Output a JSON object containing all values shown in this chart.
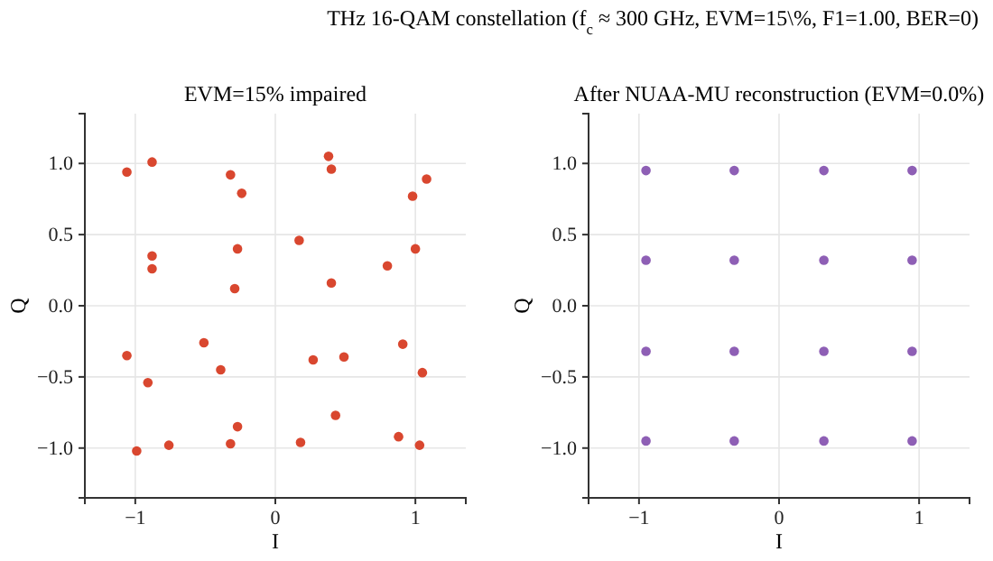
{
  "chart_data": [
    {
      "type": "scatter",
      "title": "EVM=15% impaired",
      "xlabel": "I",
      "ylabel": "Q",
      "annotations": [
        "THz 16-QAM constellation (f$_{c}$ ≈ 300 GHz, EVM=15\\%, F1=1.00, BER=0)"
      ],
      "xlim": [
        -1.36,
        1.36
      ],
      "ylim": [
        -1.35,
        1.35
      ],
      "xticks": [
        -1,
        0,
        1
      ],
      "yticks": [
        {
          "value": -1,
          "label": "−1.0"
        },
        {
          "value": -0.5,
          "label": "−0.5"
        },
        {
          "value": 0,
          "label": "0.0"
        },
        {
          "value": 0.5,
          "label": "0.5"
        },
        {
          "value": 1,
          "label": "1.0"
        }
      ],
      "grid": true,
      "marker": "circle",
      "series": [
        {
          "color": "#d9472f",
          "x": [
            -1.06,
            -0.88,
            -0.32,
            -0.24,
            0.38,
            0.4,
            1.08,
            0.98,
            -0.88,
            -0.88,
            -0.27,
            -0.29,
            0.17,
            0.4,
            0.8,
            1.0,
            -1.06,
            -0.51,
            -0.39,
            -0.91,
            0.27,
            0.49,
            0.91,
            1.05,
            -0.99,
            -0.76,
            -0.32,
            -0.27,
            0.18,
            0.43,
            0.88,
            1.03
          ],
          "values": [
            0.94,
            1.01,
            0.92,
            0.79,
            1.05,
            0.96,
            0.89,
            0.77,
            0.35,
            0.26,
            0.4,
            0.12,
            0.46,
            0.16,
            0.28,
            0.4,
            -0.35,
            -0.26,
            -0.45,
            -0.54,
            -0.38,
            -0.36,
            -0.27,
            -0.47,
            -1.02,
            -0.98,
            -0.97,
            -0.85,
            -0.96,
            -0.77,
            -0.92,
            -0.98
          ]
        }
      ]
    },
    {
      "type": "scatter",
      "title": "After NUAA-MU reconstruction (EVM=0.0%)",
      "xlabel": "I",
      "ylabel": "Q",
      "xlim": [
        -1.36,
        1.36
      ],
      "ylim": [
        -1.35,
        1.35
      ],
      "xticks": [
        -1,
        0,
        1
      ],
      "yticks": [
        {
          "value": -1,
          "label": "−1.0"
        },
        {
          "value": -0.5,
          "label": "−0.5"
        },
        {
          "value": 0,
          "label": "0.0"
        },
        {
          "value": 0.5,
          "label": "0.5"
        },
        {
          "value": 1,
          "label": "1.0"
        }
      ],
      "grid": true,
      "marker": "circle",
      "series": [
        {
          "color": "#8e5fb5",
          "x": [
            -0.95,
            -0.32,
            0.32,
            0.95,
            -0.95,
            -0.32,
            0.32,
            0.95,
            -0.95,
            -0.32,
            0.32,
            0.95,
            -0.95,
            -0.32,
            0.32,
            0.95
          ],
          "values": [
            0.95,
            0.95,
            0.95,
            0.95,
            0.32,
            0.32,
            0.32,
            0.32,
            -0.32,
            -0.32,
            -0.32,
            -0.32,
            -0.95,
            -0.95,
            -0.95,
            -0.95
          ]
        }
      ]
    }
  ]
}
